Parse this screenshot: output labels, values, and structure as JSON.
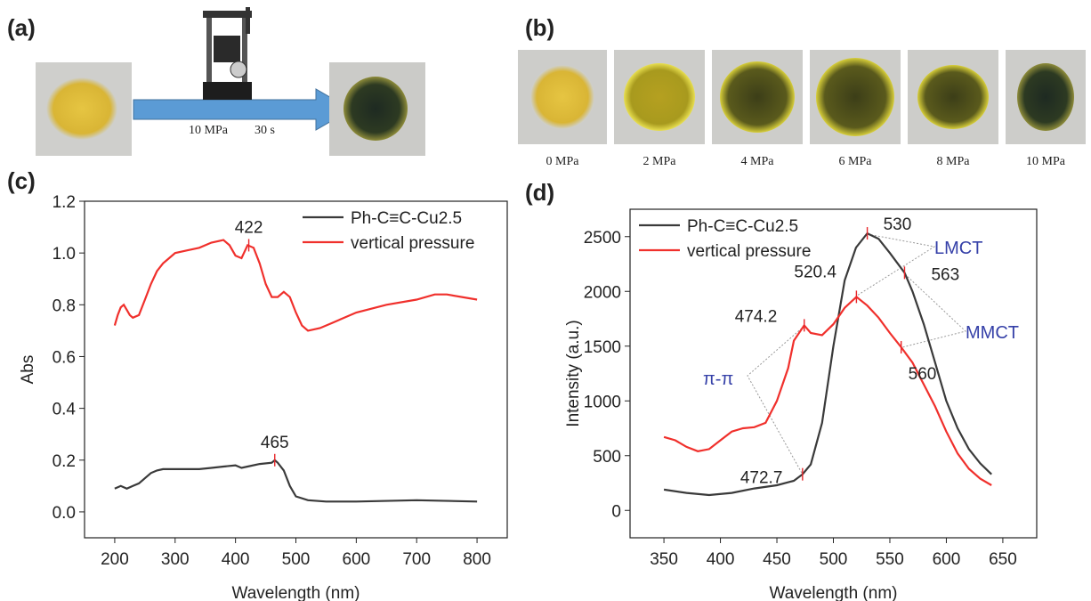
{
  "panels": {
    "a": {
      "label": "(a)",
      "condition_pressure": "10 MPa",
      "condition_time": "30 s"
    },
    "b": {
      "label": "(b)",
      "photos": [
        "0 MPa",
        "2 MPa",
        "4 MPa",
        "6 MPa",
        "8 MPa",
        "10 MPa"
      ]
    }
  },
  "chart_data": [
    {
      "type": "line",
      "label": "(c)",
      "xlabel": "Wavelength (nm)",
      "ylabel": "Abs",
      "xlim": [
        150,
        850
      ],
      "xticks": [
        200,
        300,
        400,
        500,
        600,
        700,
        800
      ],
      "ylim": [
        -0.1,
        1.2
      ],
      "yticks": [
        {
          "value": 0,
          "label": "0.0"
        },
        0.2,
        0.4,
        0.6,
        0.8,
        {
          "value": 1,
          "label": "1.0"
        },
        1.2
      ],
      "legend": "upper right",
      "annotation_color": "#e8262a",
      "series": [
        {
          "name": "Ph-C≡C-Cu2.5",
          "color": "#3a3a3a",
          "x": [
            200,
            210,
            220,
            230,
            240,
            250,
            260,
            270,
            280,
            300,
            320,
            340,
            360,
            380,
            400,
            410,
            420,
            440,
            460,
            465,
            470,
            480,
            490,
            500,
            520,
            550,
            600,
            700,
            800
          ],
          "values": [
            0.09,
            0.1,
            0.09,
            0.1,
            0.11,
            0.13,
            0.15,
            0.16,
            0.165,
            0.165,
            0.165,
            0.165,
            0.17,
            0.175,
            0.18,
            0.17,
            0.175,
            0.185,
            0.19,
            0.2,
            0.19,
            0.16,
            0.1,
            0.06,
            0.045,
            0.04,
            0.04,
            0.045,
            0.04
          ]
        },
        {
          "name": "vertical pressure",
          "color": "#f0302c",
          "x": [
            200,
            205,
            210,
            215,
            220,
            225,
            230,
            240,
            250,
            260,
            270,
            280,
            290,
            300,
            320,
            340,
            360,
            380,
            390,
            400,
            410,
            420,
            430,
            440,
            450,
            460,
            470,
            480,
            490,
            500,
            510,
            520,
            540,
            560,
            600,
            650,
            700,
            730,
            750,
            800
          ],
          "values": [
            0.72,
            0.76,
            0.79,
            0.8,
            0.78,
            0.76,
            0.75,
            0.76,
            0.82,
            0.88,
            0.93,
            0.96,
            0.98,
            1.0,
            1.01,
            1.02,
            1.04,
            1.05,
            1.03,
            0.99,
            0.98,
            1.03,
            1.02,
            0.96,
            0.88,
            0.83,
            0.83,
            0.85,
            0.83,
            0.77,
            0.72,
            0.7,
            0.71,
            0.73,
            0.77,
            0.8,
            0.82,
            0.84,
            0.84,
            0.82
          ]
        }
      ],
      "annotations": [
        {
          "text": "422",
          "x": 422,
          "y": 1.03
        },
        {
          "text": "465",
          "x": 465,
          "y": 0.2
        }
      ]
    },
    {
      "type": "line",
      "label": "(d)",
      "xlabel": "Wavelength (nm)",
      "ylabel": "Intensity (a.u.)",
      "xlim": [
        320,
        680
      ],
      "xticks": [
        350,
        400,
        450,
        500,
        550,
        600,
        650
      ],
      "ylim": [
        -250,
        2750
      ],
      "yticks": [
        0,
        500,
        1000,
        1500,
        2000,
        2500
      ],
      "legend": "upper left",
      "annotation_color": "#e8262a",
      "series": [
        {
          "name": "Ph-C≡C-Cu2.5",
          "color": "#3a3a3a",
          "x": [
            350,
            370,
            390,
            410,
            430,
            450,
            465,
            472.7,
            480,
            490,
            500,
            510,
            520,
            530,
            540,
            550,
            563,
            570,
            580,
            590,
            600,
            610,
            620,
            630,
            640
          ],
          "values": [
            190,
            160,
            140,
            160,
            200,
            230,
            270,
            330,
            420,
            800,
            1500,
            2100,
            2400,
            2530,
            2480,
            2350,
            2170,
            2000,
            1700,
            1350,
            1000,
            750,
            560,
            430,
            330
          ]
        },
        {
          "name": "vertical pressure",
          "color": "#f0302c",
          "x": [
            350,
            360,
            370,
            380,
            390,
            400,
            410,
            420,
            430,
            440,
            450,
            460,
            465,
            474.2,
            480,
            490,
            500,
            510,
            520.4,
            530,
            540,
            550,
            560,
            570,
            580,
            590,
            600,
            610,
            620,
            630,
            640
          ],
          "values": [
            670,
            640,
            580,
            540,
            560,
            640,
            720,
            750,
            760,
            800,
            1000,
            1300,
            1550,
            1690,
            1620,
            1600,
            1700,
            1850,
            1950,
            1870,
            1760,
            1620,
            1490,
            1350,
            1150,
            950,
            720,
            520,
            380,
            290,
            230
          ]
        }
      ],
      "annotations": [
        {
          "text": "530",
          "x": 530,
          "y": 2530
        },
        {
          "text": "563",
          "x": 563,
          "y": 2170
        },
        {
          "text": "520.4",
          "x": 520.4,
          "y": 1950
        },
        {
          "text": "474.2",
          "x": 474.2,
          "y": 1690
        },
        {
          "text": "560",
          "x": 560,
          "y": 1490
        },
        {
          "text": "472.7",
          "x": 472.7,
          "y": 330
        }
      ],
      "transitions": [
        "LMCT",
        "MMCT",
        "π-π"
      ]
    }
  ]
}
